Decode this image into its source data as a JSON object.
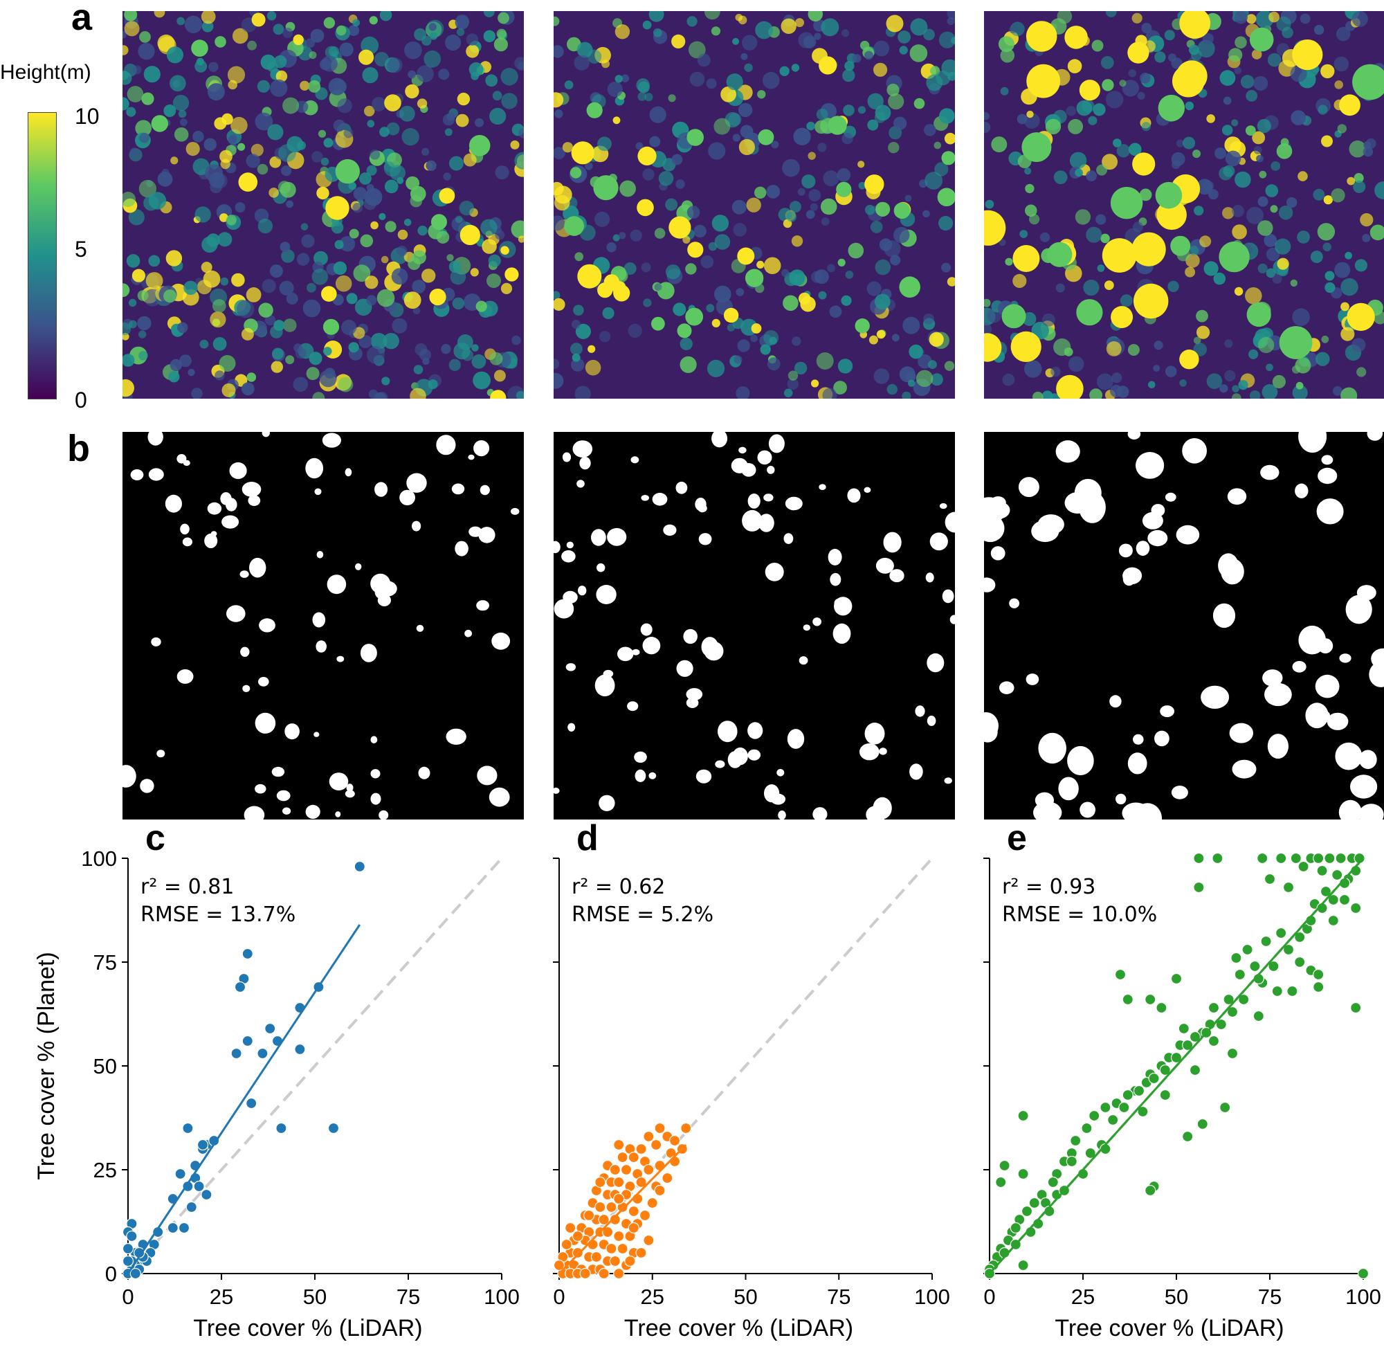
{
  "panel_labels": {
    "a": "a",
    "b": "b",
    "c": "c",
    "d": "d",
    "e": "e"
  },
  "colorbar": {
    "title": "Height(m)",
    "ticks": [
      "10",
      "5",
      "0"
    ],
    "colors": [
      "#440154",
      "#3b528b",
      "#21918c",
      "#5ec962",
      "#fde725"
    ]
  },
  "map_colors": {
    "background": "#3b1e63",
    "low": "#3b528b",
    "mid": "#21918c",
    "high": "#5ec962",
    "top": "#fde725"
  },
  "chart_data": [
    {
      "type": "scatter",
      "panel": "c",
      "xlabel": "Tree cover % (LiDAR)",
      "ylabel": "Tree cover % (Planet)",
      "xlim": [
        0,
        100
      ],
      "ylim": [
        0,
        100
      ],
      "xticks": [
        0,
        25,
        50,
        75,
        100
      ],
      "yticks": [
        0,
        25,
        50,
        75,
        100
      ],
      "color": "#1f77b4",
      "annotation": [
        "r² = 0.81",
        "RMSE = 13.7%"
      ],
      "fit_line": {
        "x": [
          0,
          62
        ],
        "y": [
          0,
          84
        ]
      },
      "reference_line": {
        "x": [
          0,
          100
        ],
        "y": [
          0,
          100
        ]
      },
      "points": [
        [
          62,
          98
        ],
        [
          32,
          77
        ],
        [
          31,
          71
        ],
        [
          30,
          69
        ],
        [
          51,
          69
        ],
        [
          46,
          64
        ],
        [
          38,
          59
        ],
        [
          40,
          56
        ],
        [
          32,
          56
        ],
        [
          46,
          54
        ],
        [
          29,
          53
        ],
        [
          36,
          53
        ],
        [
          33,
          41
        ],
        [
          16,
          35
        ],
        [
          41,
          35
        ],
        [
          55,
          35
        ],
        [
          21,
          31
        ],
        [
          20,
          30
        ],
        [
          23,
          32
        ],
        [
          20,
          31
        ],
        [
          14,
          24
        ],
        [
          18,
          26
        ],
        [
          18,
          23
        ],
        [
          16,
          21
        ],
        [
          19,
          21
        ],
        [
          21,
          19
        ],
        [
          12,
          18
        ],
        [
          17,
          16
        ],
        [
          15,
          11
        ],
        [
          12,
          11
        ],
        [
          8,
          10
        ],
        [
          7,
          7
        ],
        [
          6,
          5
        ],
        [
          4,
          7
        ],
        [
          3,
          3
        ],
        [
          2,
          5
        ],
        [
          1,
          12
        ],
        [
          0,
          10
        ],
        [
          1,
          9
        ],
        [
          0,
          6
        ],
        [
          2,
          2
        ],
        [
          1,
          1
        ],
        [
          0,
          0
        ],
        [
          3,
          1
        ],
        [
          5,
          3
        ],
        [
          2,
          0
        ],
        [
          4,
          4
        ],
        [
          1,
          3
        ],
        [
          0,
          3
        ],
        [
          3,
          5
        ]
      ]
    },
    {
      "type": "scatter",
      "panel": "d",
      "xlabel": "Tree cover % (LiDAR)",
      "ylabel": "",
      "xlim": [
        0,
        100
      ],
      "ylim": [
        0,
        100
      ],
      "xticks": [
        0,
        25,
        50,
        75,
        100
      ],
      "yticks": [
        0,
        25,
        50,
        75,
        100
      ],
      "color": "#ff7f0e",
      "annotation": [
        "r² = 0.62",
        "RMSE = 5.2%"
      ],
      "fit_line": {
        "x": [
          0,
          34
        ],
        "y": [
          0,
          31
        ]
      },
      "reference_line": {
        "x": [
          0,
          100
        ],
        "y": [
          0,
          100
        ]
      },
      "points": [
        [
          27,
          35
        ],
        [
          34,
          35
        ],
        [
          24,
          33
        ],
        [
          29,
          33
        ],
        [
          31,
          32
        ],
        [
          16,
          31
        ],
        [
          19,
          30
        ],
        [
          22,
          30
        ],
        [
          26,
          31
        ],
        [
          33,
          30
        ],
        [
          30,
          29
        ],
        [
          17,
          28
        ],
        [
          20,
          28
        ],
        [
          23,
          27
        ],
        [
          27,
          26
        ],
        [
          13,
          26
        ],
        [
          15,
          25
        ],
        [
          18,
          25
        ],
        [
          21,
          24
        ],
        [
          24,
          25
        ],
        [
          12,
          23
        ],
        [
          14,
          22
        ],
        [
          16,
          22
        ],
        [
          19,
          21
        ],
        [
          22,
          22
        ],
        [
          26,
          21
        ],
        [
          10,
          20
        ],
        [
          13,
          19
        ],
        [
          15,
          19
        ],
        [
          18,
          19
        ],
        [
          21,
          18
        ],
        [
          9,
          17
        ],
        [
          11,
          16
        ],
        [
          14,
          16
        ],
        [
          17,
          16
        ],
        [
          20,
          15
        ],
        [
          7,
          14
        ],
        [
          10,
          13
        ],
        [
          12,
          13
        ],
        [
          15,
          13
        ],
        [
          18,
          12
        ],
        [
          21,
          12
        ],
        [
          6,
          11
        ],
        [
          8,
          10
        ],
        [
          11,
          10
        ],
        [
          13,
          10
        ],
        [
          16,
          9
        ],
        [
          19,
          9
        ],
        [
          4,
          8
        ],
        [
          7,
          8
        ],
        [
          9,
          7
        ],
        [
          12,
          7
        ],
        [
          14,
          6
        ],
        [
          17,
          6
        ],
        [
          20,
          5
        ],
        [
          3,
          5
        ],
        [
          5,
          5
        ],
        [
          8,
          4
        ],
        [
          10,
          4
        ],
        [
          13,
          3
        ],
        [
          15,
          3
        ],
        [
          18,
          2
        ],
        [
          2,
          2
        ],
        [
          4,
          2
        ],
        [
          6,
          1
        ],
        [
          9,
          1
        ],
        [
          11,
          1
        ],
        [
          1,
          0
        ],
        [
          3,
          0
        ],
        [
          5,
          0
        ],
        [
          7,
          0
        ],
        [
          12,
          0
        ],
        [
          16,
          0
        ],
        [
          19,
          3
        ],
        [
          22,
          5
        ],
        [
          24,
          8
        ],
        [
          20,
          11
        ],
        [
          23,
          14
        ],
        [
          16,
          18
        ],
        [
          11,
          22
        ],
        [
          8,
          14
        ],
        [
          5,
          9
        ],
        [
          3,
          11
        ],
        [
          2,
          7
        ],
        [
          1,
          4
        ],
        [
          0,
          2
        ],
        [
          25,
          17
        ],
        [
          27,
          20
        ],
        [
          29,
          23
        ],
        [
          31,
          27
        ]
      ]
    },
    {
      "type": "scatter",
      "panel": "e",
      "xlabel": "Tree cover % (LiDAR)",
      "ylabel": "",
      "xlim": [
        0,
        100
      ],
      "ylim": [
        0,
        100
      ],
      "xticks": [
        0,
        25,
        50,
        75,
        100
      ],
      "yticks": [
        0,
        25,
        50,
        75,
        100
      ],
      "color": "#2ca02c",
      "annotation": [
        "r² = 0.93",
        "RMSE = 10.0%"
      ],
      "fit_line": {
        "x": [
          0,
          100
        ],
        "y": [
          0,
          100
        ]
      },
      "reference_line": {
        "x": [
          0,
          100
        ],
        "y": [
          0,
          100
        ]
      },
      "points": [
        [
          56,
          100
        ],
        [
          61,
          100
        ],
        [
          73,
          100
        ],
        [
          78,
          100
        ],
        [
          82,
          100
        ],
        [
          86,
          100
        ],
        [
          88,
          100
        ],
        [
          91,
          100
        ],
        [
          94,
          100
        ],
        [
          97,
          100
        ],
        [
          99,
          100
        ],
        [
          84,
          98
        ],
        [
          89,
          97
        ],
        [
          93,
          96
        ],
        [
          96,
          95
        ],
        [
          75,
          95
        ],
        [
          80,
          93
        ],
        [
          90,
          92
        ],
        [
          87,
          89
        ],
        [
          95,
          90
        ],
        [
          98,
          88
        ],
        [
          56,
          93
        ],
        [
          92,
          85
        ],
        [
          85,
          83
        ],
        [
          78,
          82
        ],
        [
          74,
          80
        ],
        [
          69,
          78
        ],
        [
          66,
          76
        ],
        [
          71,
          74
        ],
        [
          67,
          72
        ],
        [
          73,
          70
        ],
        [
          64,
          66
        ],
        [
          60,
          64
        ],
        [
          59,
          60
        ],
        [
          57,
          58
        ],
        [
          55,
          57
        ],
        [
          51,
          55
        ],
        [
          48,
          52
        ],
        [
          46,
          50
        ],
        [
          43,
          48
        ],
        [
          42,
          46
        ],
        [
          39,
          44
        ],
        [
          37,
          43
        ],
        [
          34,
          41
        ],
        [
          31,
          40
        ],
        [
          28,
          38
        ],
        [
          26,
          35
        ],
        [
          23,
          32
        ],
        [
          22,
          29
        ],
        [
          20,
          27
        ],
        [
          18,
          24
        ],
        [
          17,
          22
        ],
        [
          14,
          19
        ],
        [
          12,
          17
        ],
        [
          10,
          15
        ],
        [
          8,
          13
        ],
        [
          6,
          10
        ],
        [
          5,
          8
        ],
        [
          3,
          6
        ],
        [
          2,
          4
        ],
        [
          1,
          2
        ],
        [
          0,
          1
        ],
        [
          0,
          0
        ],
        [
          9,
          2
        ],
        [
          4,
          26
        ],
        [
          9,
          38
        ],
        [
          3,
          22
        ],
        [
          9,
          24
        ],
        [
          7,
          11
        ],
        [
          15,
          17
        ],
        [
          18,
          19
        ],
        [
          22,
          27
        ],
        [
          27,
          29
        ],
        [
          30,
          31
        ],
        [
          33,
          37
        ],
        [
          36,
          40
        ],
        [
          40,
          44
        ],
        [
          44,
          47
        ],
        [
          47,
          49
        ],
        [
          50,
          52
        ],
        [
          53,
          55
        ],
        [
          58,
          58
        ],
        [
          62,
          60
        ],
        [
          65,
          63
        ],
        [
          68,
          66
        ],
        [
          72,
          71
        ],
        [
          76,
          74
        ],
        [
          80,
          78
        ],
        [
          83,
          81
        ],
        [
          86,
          85
        ],
        [
          89,
          88
        ],
        [
          92,
          90
        ],
        [
          95,
          94
        ],
        [
          98,
          97
        ],
        [
          100,
          0
        ],
        [
          98,
          64
        ],
        [
          88,
          69
        ],
        [
          86,
          73
        ],
        [
          83,
          75
        ],
        [
          52,
          59
        ],
        [
          46,
          64
        ],
        [
          44,
          21
        ],
        [
          43,
          20
        ],
        [
          50,
          71
        ],
        [
          35,
          72
        ],
        [
          37,
          66
        ],
        [
          43,
          66
        ],
        [
          53,
          33
        ],
        [
          57,
          36
        ],
        [
          63,
          40
        ],
        [
          55,
          49
        ],
        [
          60,
          56
        ],
        [
          65,
          53
        ],
        [
          72,
          62
        ],
        [
          77,
          68
        ],
        [
          81,
          68
        ],
        [
          88,
          72
        ],
        [
          47,
          43
        ],
        [
          41,
          39
        ],
        [
          31,
          30
        ],
        [
          25,
          24
        ],
        [
          20,
          20
        ],
        [
          16,
          15
        ],
        [
          13,
          12
        ],
        [
          11,
          10
        ],
        [
          7,
          7
        ],
        [
          4,
          5
        ]
      ]
    }
  ]
}
